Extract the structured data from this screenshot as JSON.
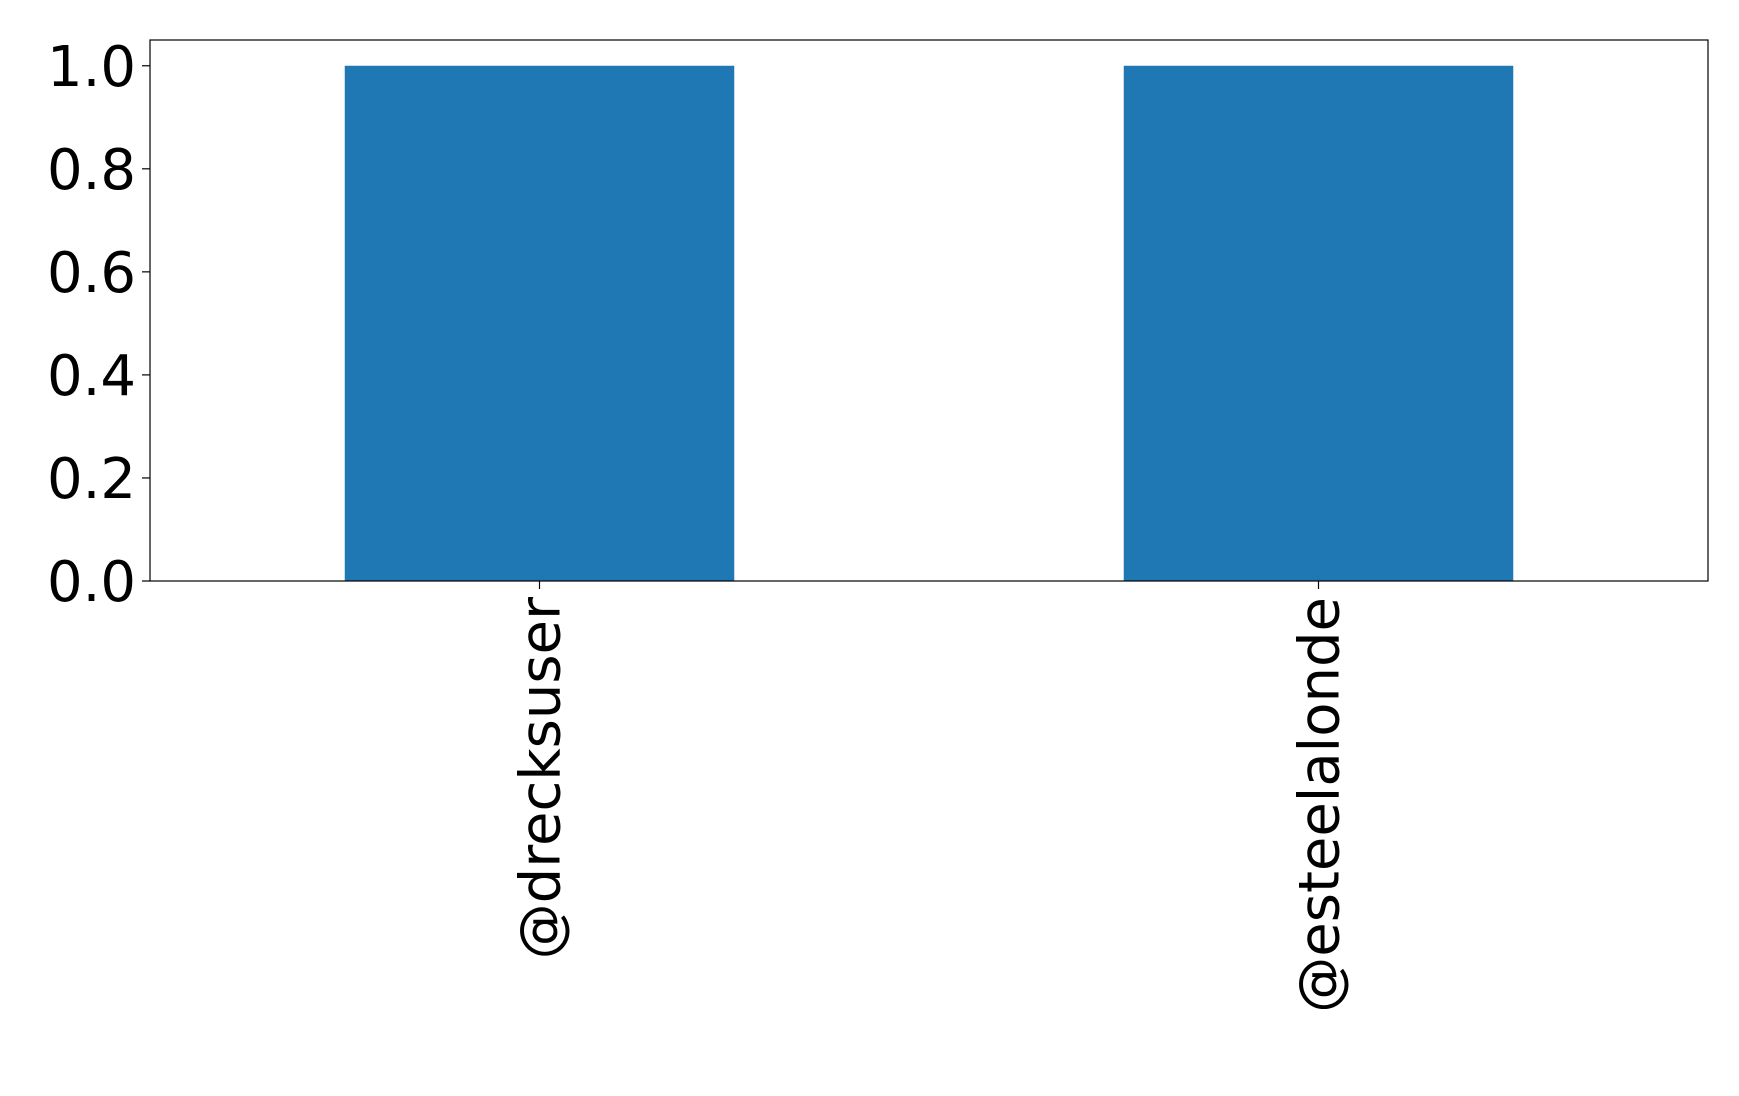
{
  "chart_data": {
    "type": "bar",
    "title": "",
    "xlabel": "",
    "ylabel": "",
    "categories": [
      "@drecksuser",
      "@esteelalonde"
    ],
    "values": [
      1,
      1
    ],
    "ylim": [
      0,
      1.05
    ],
    "yticks": [
      "0.0",
      "0.2",
      "0.4",
      "0.6",
      "0.8",
      "1.0"
    ],
    "grid": false,
    "bar_color": "#1f77b4"
  }
}
